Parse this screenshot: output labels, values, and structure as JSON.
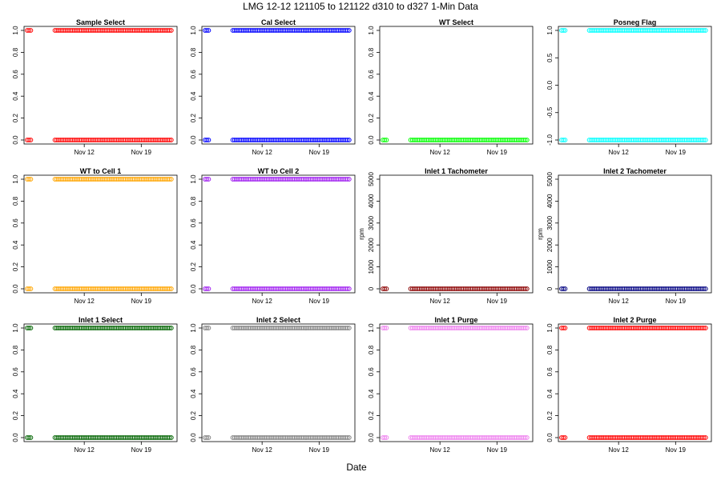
{
  "title": "LMG   12-12    121105 to 121122    d310 to d327   1-Min Data",
  "xlabel": "Date",
  "chart_data": [
    {
      "type": "scatter",
      "title": "Sample Select",
      "color": "#ff0000",
      "ylabel": "",
      "ylim": [
        0,
        1
      ],
      "yticks": [
        "0.0",
        "0.2",
        "0.4",
        "0.6",
        "0.8",
        "1.0"
      ],
      "xticks": [
        "Nov 12",
        "Nov 19"
      ],
      "xlim": [
        0,
        18
      ],
      "xtick_pos": [
        7,
        14
      ],
      "points_per_segment": "dense",
      "segments": [
        {
          "y": 1,
          "x": [
            0,
            0.55
          ]
        },
        {
          "y": 0,
          "x": [
            0,
            0.55
          ]
        },
        {
          "y": 1,
          "x": [
            3.4,
            17.8
          ]
        },
        {
          "y": 0,
          "x": [
            3.4,
            17.8
          ]
        }
      ]
    },
    {
      "type": "scatter",
      "title": "Cal Select",
      "color": "#0000ff",
      "ylabel": "",
      "ylim": [
        0,
        1
      ],
      "yticks": [
        "0.0",
        "0.2",
        "0.4",
        "0.6",
        "0.8",
        "1.0"
      ],
      "xticks": [
        "Nov 12",
        "Nov 19"
      ],
      "xlim": [
        0,
        18
      ],
      "xtick_pos": [
        7,
        14
      ],
      "segments": [
        {
          "y": 1,
          "x": [
            0,
            0.55
          ]
        },
        {
          "y": 0,
          "x": [
            0,
            0.55
          ]
        },
        {
          "y": 1,
          "x": [
            3.4,
            17.8
          ]
        },
        {
          "y": 0,
          "x": [
            3.4,
            17.8
          ]
        }
      ]
    },
    {
      "type": "scatter",
      "title": "WT Select",
      "color": "#00ff00",
      "ylabel": "",
      "ylim": [
        0,
        1
      ],
      "yticks": [
        "0.0",
        "0.2",
        "0.4",
        "0.6",
        "0.8",
        "1.0"
      ],
      "xticks": [
        "Nov 12",
        "Nov 19"
      ],
      "xlim": [
        0,
        18
      ],
      "xtick_pos": [
        7,
        14
      ],
      "segments": [
        {
          "y": 0,
          "x": [
            0,
            0.55
          ]
        },
        {
          "y": 0,
          "x": [
            3.4,
            17.8
          ]
        }
      ]
    },
    {
      "type": "scatter",
      "title": "Posneg Flag",
      "color": "#00ffff",
      "ylabel": "",
      "ylim": [
        -1,
        1
      ],
      "yticks": [
        "-1.0",
        "-0.5",
        "0.0",
        "0.5",
        "1.0"
      ],
      "xticks": [
        "Nov 12",
        "Nov 19"
      ],
      "xlim": [
        0,
        18
      ],
      "xtick_pos": [
        7,
        14
      ],
      "segments": [
        {
          "y": 1,
          "x": [
            0,
            0.55
          ]
        },
        {
          "y": -1,
          "x": [
            0,
            0.55
          ]
        },
        {
          "y": 1,
          "x": [
            3.4,
            17.8
          ]
        },
        {
          "y": -1,
          "x": [
            3.4,
            17.8
          ]
        }
      ]
    },
    {
      "type": "scatter",
      "title": "WT to Cell 1",
      "color": "#ffa500",
      "ylabel": "",
      "ylim": [
        0,
        1
      ],
      "yticks": [
        "0.0",
        "0.2",
        "0.4",
        "0.6",
        "0.8",
        "1.0"
      ],
      "xticks": [
        "Nov 12",
        "Nov 19"
      ],
      "xlim": [
        0,
        18
      ],
      "xtick_pos": [
        7,
        14
      ],
      "segments": [
        {
          "y": 1,
          "x": [
            0,
            0.55
          ]
        },
        {
          "y": 0,
          "x": [
            0,
            0.55
          ]
        },
        {
          "y": 1,
          "x": [
            3.4,
            17.8
          ]
        },
        {
          "y": 0,
          "x": [
            3.4,
            17.8
          ]
        }
      ]
    },
    {
      "type": "scatter",
      "title": "WT to Cell 2",
      "color": "#a020f0",
      "ylabel": "",
      "ylim": [
        0,
        1
      ],
      "yticks": [
        "0.0",
        "0.2",
        "0.4",
        "0.6",
        "0.8",
        "1.0"
      ],
      "xticks": [
        "Nov 12",
        "Nov 19"
      ],
      "xlim": [
        0,
        18
      ],
      "xtick_pos": [
        7,
        14
      ],
      "segments": [
        {
          "y": 1,
          "x": [
            0,
            0.55
          ]
        },
        {
          "y": 0,
          "x": [
            0,
            0.55
          ]
        },
        {
          "y": 1,
          "x": [
            3.4,
            17.8
          ]
        },
        {
          "y": 0,
          "x": [
            3.4,
            17.8
          ]
        }
      ]
    },
    {
      "type": "scatter",
      "title": "Inlet 1 Tachometer",
      "color": "#8b0000",
      "ylabel": "rpm",
      "ylim": [
        0,
        5000
      ],
      "yticks": [
        "0",
        "1000",
        "2000",
        "3000",
        "4000",
        "5000"
      ],
      "xticks": [
        "Nov 12",
        "Nov 19"
      ],
      "xlim": [
        0,
        18
      ],
      "xtick_pos": [
        7,
        14
      ],
      "segments": [
        {
          "y": 0,
          "x": [
            0,
            0.55
          ]
        },
        {
          "y": 0,
          "x": [
            3.4,
            17.8
          ]
        }
      ]
    },
    {
      "type": "scatter",
      "title": "Inlet 2 Tachometer",
      "color": "#000080",
      "ylabel": "rpm",
      "ylim": [
        0,
        5000
      ],
      "yticks": [
        "0",
        "1000",
        "2000",
        "3000",
        "4000",
        "5000"
      ],
      "xticks": [
        "Nov 12",
        "Nov 19"
      ],
      "xlim": [
        0,
        18
      ],
      "xtick_pos": [
        7,
        14
      ],
      "segments": [
        {
          "y": 0,
          "x": [
            0,
            0.55
          ]
        },
        {
          "y": 0,
          "x": [
            3.4,
            17.8
          ]
        }
      ]
    },
    {
      "type": "scatter",
      "title": "Inlet 1 Select",
      "color": "#006400",
      "ylabel": "",
      "ylim": [
        0,
        1
      ],
      "yticks": [
        "0.0",
        "0.2",
        "0.4",
        "0.6",
        "0.8",
        "1.0"
      ],
      "xticks": [
        "Nov 12",
        "Nov 19"
      ],
      "xlim": [
        0,
        18
      ],
      "xtick_pos": [
        7,
        14
      ],
      "segments": [
        {
          "y": 1,
          "x": [
            0,
            0.55
          ]
        },
        {
          "y": 0,
          "x": [
            0,
            0.55
          ]
        },
        {
          "y": 1,
          "x": [
            3.4,
            17.8
          ]
        },
        {
          "y": 0,
          "x": [
            3.4,
            17.8
          ]
        }
      ]
    },
    {
      "type": "scatter",
      "title": "Inlet 2 Select",
      "color": "#808080",
      "ylabel": "",
      "ylim": [
        0,
        1
      ],
      "yticks": [
        "0.0",
        "0.2",
        "0.4",
        "0.6",
        "0.8",
        "1.0"
      ],
      "xticks": [
        "Nov 12",
        "Nov 19"
      ],
      "xlim": [
        0,
        18
      ],
      "xtick_pos": [
        7,
        14
      ],
      "segments": [
        {
          "y": 1,
          "x": [
            0,
            0.55
          ]
        },
        {
          "y": 0,
          "x": [
            0,
            0.55
          ]
        },
        {
          "y": 1,
          "x": [
            3.4,
            17.8
          ]
        },
        {
          "y": 0,
          "x": [
            3.4,
            17.8
          ]
        }
      ]
    },
    {
      "type": "scatter",
      "title": "Inlet 1 Purge",
      "color": "#ee82ee",
      "ylabel": "",
      "ylim": [
        0,
        1
      ],
      "yticks": [
        "0.0",
        "0.2",
        "0.4",
        "0.6",
        "0.8",
        "1.0"
      ],
      "xticks": [
        "Nov 12",
        "Nov 19"
      ],
      "xlim": [
        0,
        18
      ],
      "xtick_pos": [
        7,
        14
      ],
      "segments": [
        {
          "y": 1,
          "x": [
            0,
            0.55
          ]
        },
        {
          "y": 0,
          "x": [
            0,
            0.55
          ]
        },
        {
          "y": 1,
          "x": [
            3.4,
            17.8
          ]
        },
        {
          "y": 0,
          "x": [
            3.4,
            17.8
          ]
        }
      ]
    },
    {
      "type": "scatter",
      "title": "Inlet 2 Purge",
      "color": "#ff0000",
      "ylabel": "",
      "ylim": [
        0,
        1
      ],
      "yticks": [
        "0.0",
        "0.2",
        "0.4",
        "0.6",
        "0.8",
        "1.0"
      ],
      "xticks": [
        "Nov 12",
        "Nov 19"
      ],
      "xlim": [
        0,
        18
      ],
      "xtick_pos": [
        7,
        14
      ],
      "segments": [
        {
          "y": 1,
          "x": [
            0,
            0.55
          ]
        },
        {
          "y": 0,
          "x": [
            0,
            0.55
          ]
        },
        {
          "y": 1,
          "x": [
            3.4,
            17.8
          ]
        },
        {
          "y": 0,
          "x": [
            3.4,
            17.8
          ]
        }
      ]
    }
  ]
}
